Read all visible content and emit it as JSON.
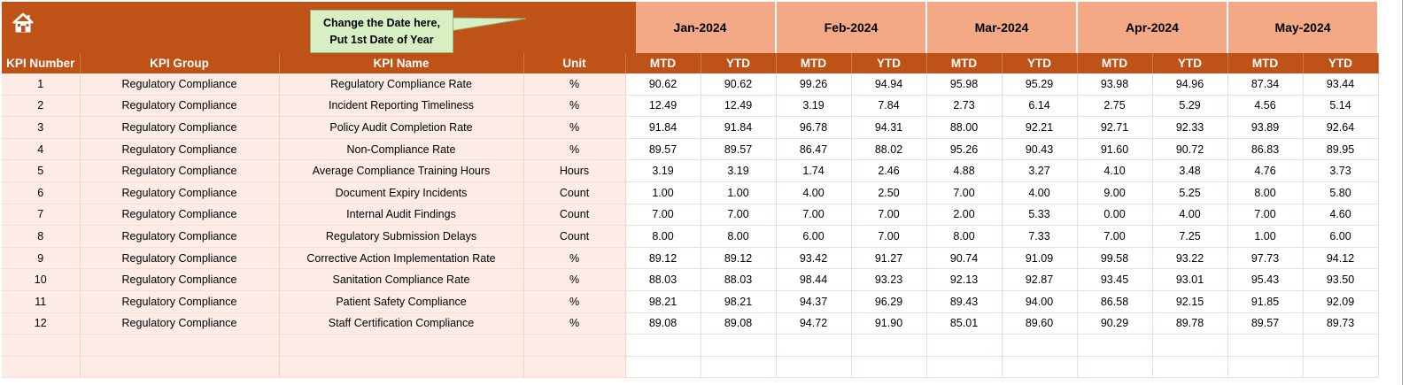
{
  "header": {
    "home_icon": "home-icon",
    "callout": {
      "line1": "Change the Date here,",
      "line2": "Put 1st Date of Year"
    },
    "months": [
      "Jan-2024",
      "Feb-2024",
      "Mar-2024",
      "Apr-2024",
      "May-2024"
    ]
  },
  "columns": {
    "kpi_number": "KPI Number",
    "kpi_group": "KPI Group",
    "kpi_name": "KPI Name",
    "unit": "Unit",
    "mtd": "MTD",
    "ytd": "YTD"
  },
  "colors": {
    "header_bg": "#bf5216",
    "month_bg": "#f3a985",
    "label_bg": "#fdece5",
    "callout_bg": "#d8efc4"
  },
  "rows": [
    {
      "num": "1",
      "group": "Regulatory Compliance",
      "name": "Regulatory Compliance Rate",
      "unit": "%",
      "values": [
        "90.62",
        "90.62",
        "99.26",
        "94.94",
        "95.98",
        "95.29",
        "93.98",
        "94.96",
        "87.34",
        "93.44"
      ]
    },
    {
      "num": "2",
      "group": "Regulatory Compliance",
      "name": "Incident Reporting Timeliness",
      "unit": "%",
      "values": [
        "12.49",
        "12.49",
        "3.19",
        "7.84",
        "2.73",
        "6.14",
        "2.75",
        "5.29",
        "4.56",
        "5.14"
      ]
    },
    {
      "num": "3",
      "group": "Regulatory Compliance",
      "name": "Policy Audit Completion Rate",
      "unit": "%",
      "values": [
        "91.84",
        "91.84",
        "96.78",
        "94.31",
        "88.00",
        "92.21",
        "92.71",
        "92.33",
        "93.89",
        "92.64"
      ]
    },
    {
      "num": "4",
      "group": "Regulatory Compliance",
      "name": "Non-Compliance Rate",
      "unit": "%",
      "values": [
        "89.57",
        "89.57",
        "86.47",
        "88.02",
        "95.26",
        "90.43",
        "91.60",
        "90.72",
        "86.83",
        "89.95"
      ]
    },
    {
      "num": "5",
      "group": "Regulatory Compliance",
      "name": "Average Compliance Training Hours",
      "unit": "Hours",
      "values": [
        "3.19",
        "3.19",
        "1.74",
        "2.46",
        "4.88",
        "3.27",
        "4.10",
        "3.48",
        "4.76",
        "3.73"
      ]
    },
    {
      "num": "6",
      "group": "Regulatory Compliance",
      "name": "Document Expiry Incidents",
      "unit": "Count",
      "values": [
        "1.00",
        "1.00",
        "4.00",
        "2.50",
        "7.00",
        "4.00",
        "9.00",
        "5.25",
        "8.00",
        "5.80"
      ]
    },
    {
      "num": "7",
      "group": "Regulatory Compliance",
      "name": "Internal Audit Findings",
      "unit": "Count",
      "values": [
        "7.00",
        "7.00",
        "7.00",
        "7.00",
        "2.00",
        "5.33",
        "0.00",
        "4.00",
        "7.00",
        "4.60"
      ]
    },
    {
      "num": "8",
      "group": "Regulatory Compliance",
      "name": "Regulatory Submission Delays",
      "unit": "Count",
      "values": [
        "8.00",
        "8.00",
        "6.00",
        "7.00",
        "8.00",
        "7.33",
        "7.00",
        "7.25",
        "1.00",
        "6.00"
      ]
    },
    {
      "num": "9",
      "group": "Regulatory Compliance",
      "name": "Corrective Action Implementation Rate",
      "unit": "%",
      "values": [
        "89.12",
        "89.12",
        "93.42",
        "91.27",
        "90.74",
        "91.09",
        "99.58",
        "93.22",
        "97.73",
        "94.12"
      ]
    },
    {
      "num": "10",
      "group": "Regulatory Compliance",
      "name": "Sanitation Compliance Rate",
      "unit": "%",
      "values": [
        "88.03",
        "88.03",
        "98.44",
        "93.23",
        "92.13",
        "92.87",
        "93.45",
        "93.01",
        "95.43",
        "93.50"
      ]
    },
    {
      "num": "11",
      "group": "Regulatory Compliance",
      "name": "Patient Safety Compliance",
      "unit": "%",
      "values": [
        "98.21",
        "98.21",
        "94.37",
        "96.29",
        "89.43",
        "94.00",
        "86.58",
        "92.15",
        "91.85",
        "92.09"
      ]
    },
    {
      "num": "12",
      "group": "Regulatory Compliance",
      "name": "Staff Certification Compliance",
      "unit": "%",
      "values": [
        "89.08",
        "89.08",
        "94.72",
        "91.90",
        "85.01",
        "89.60",
        "90.29",
        "89.78",
        "89.57",
        "89.73"
      ]
    }
  ]
}
